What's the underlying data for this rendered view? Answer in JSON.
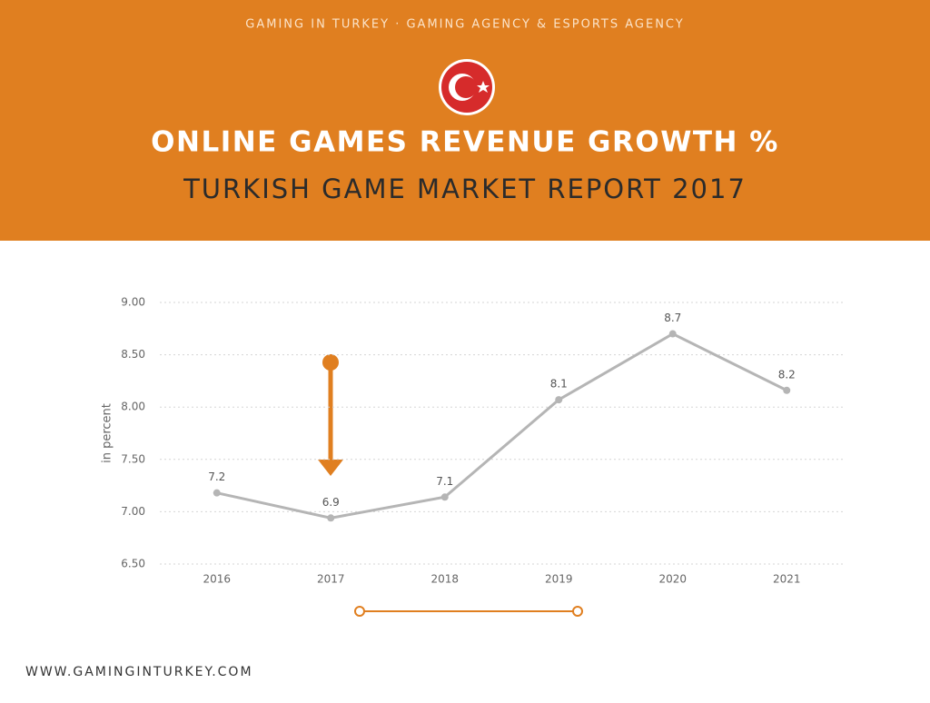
{
  "header": {
    "tagline": "GAMING IN TURKEY · GAMING AGENCY & ESPORTS AGENCY"
  },
  "chart_data": {
    "type": "line",
    "title": "ONLINE GAMES REVENUE GROWTH %",
    "subtitle": "TURKISH GAME MARKET REPORT 2017",
    "y_label": "in percent",
    "categories": [
      "2016",
      "2017",
      "2018",
      "2019",
      "2020",
      "2021"
    ],
    "values": [
      7.18,
      6.94,
      7.14,
      8.07,
      8.7,
      8.16
    ],
    "value_labels": [
      "7.2",
      "6.9",
      "7.1",
      "8.1",
      "8.7",
      "8.2"
    ],
    "color": "#b5b5b5",
    "ylim": [
      6.5,
      9
    ],
    "yticks": [
      {
        "value": 6.5,
        "label": "6.50"
      },
      {
        "value": 7,
        "label": "7.00"
      },
      {
        "value": 7.5,
        "label": "7.50"
      },
      {
        "value": 8,
        "label": "8.00"
      },
      {
        "value": 8.5,
        "label": "8.50"
      },
      {
        "value": 9,
        "label": "9.00"
      }
    ],
    "grid": true
  },
  "footer": {
    "website": "WWW.GAMINGINTURKEY.COM"
  }
}
